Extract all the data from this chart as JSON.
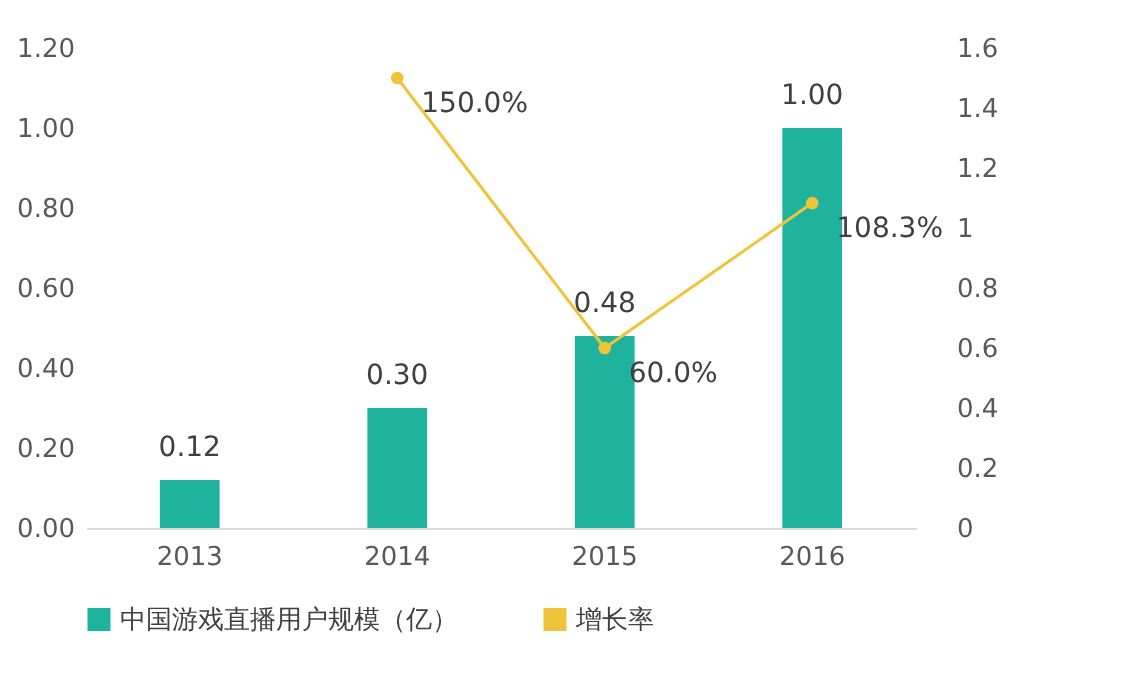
{
  "chart_data": {
    "type": "bar",
    "categories": [
      "2013",
      "2014",
      "2015",
      "2016"
    ],
    "series": [
      {
        "name": "中国游戏直播用户规模（亿）",
        "color": "#1fb39e",
        "values": [
          0.12,
          0.3,
          0.48,
          1.0
        ],
        "value_labels": [
          "0.12",
          "0.30",
          "0.48",
          "1.00"
        ]
      },
      {
        "name": "增长率",
        "type": "line",
        "axis": "y2",
        "color": "#f0c43a",
        "values": [
          null,
          1.5,
          0.6,
          1.083
        ],
        "value_labels": [
          null,
          "150.0%",
          "60.0%",
          "108.3%"
        ]
      }
    ],
    "ylim": [
      0,
      1.2
    ],
    "yticks": [
      {
        "value": 0,
        "label": "0.00"
      },
      {
        "value": 0.2,
        "label": "0.20"
      },
      {
        "value": 0.4,
        "label": "0.40"
      },
      {
        "value": 0.6,
        "label": "0.60"
      },
      {
        "value": 0.8,
        "label": "0.80"
      },
      {
        "value": 1,
        "label": "1.00"
      },
      {
        "value": 1.2,
        "label": "1.20"
      }
    ],
    "y2lim": [
      0,
      1.6
    ],
    "y2ticks": [
      0,
      0.2,
      0.4,
      0.6,
      0.8,
      1,
      1.2,
      1.4,
      1.6
    ],
    "marker": "circle",
    "legend": "bottom"
  }
}
